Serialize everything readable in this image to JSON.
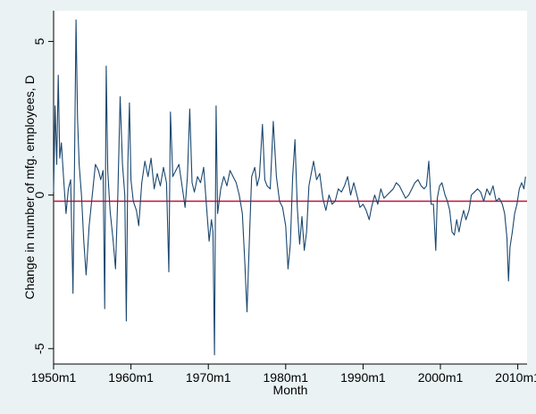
{
  "chart_data": {
    "type": "line",
    "xlabel": "Month",
    "ylabel": "Change in number of mfg. employees, D",
    "x_ticks": [
      "1950m1",
      "1960m1",
      "1970m1",
      "1980m1",
      "1990m1",
      "2000m1",
      "2010m1"
    ],
    "y_ticks": [
      "5",
      "0",
      "-5"
    ],
    "xlim": [
      1950.0,
      2011.2
    ],
    "ylim": [
      -5.5,
      6.0
    ],
    "grid": false,
    "reference_line": {
      "y": -0.2,
      "color": "#c0143c"
    },
    "series": [
      {
        "color": "#1a476f",
        "points": [
          [
            1950.0,
            0.1
          ],
          [
            1950.2,
            2.9
          ],
          [
            1950.4,
            1.0
          ],
          [
            1950.6,
            3.9
          ],
          [
            1950.8,
            1.2
          ],
          [
            1951.0,
            1.7
          ],
          [
            1951.3,
            0.5
          ],
          [
            1951.6,
            -0.6
          ],
          [
            1951.9,
            0.2
          ],
          [
            1952.2,
            0.5
          ],
          [
            1952.5,
            -3.2
          ],
          [
            1952.7,
            1.0
          ],
          [
            1952.9,
            5.7
          ],
          [
            1953.1,
            2.5
          ],
          [
            1953.3,
            1.0
          ],
          [
            1953.6,
            0.0
          ],
          [
            1953.9,
            -1.5
          ],
          [
            1954.2,
            -2.6
          ],
          [
            1954.6,
            -1.0
          ],
          [
            1955.0,
            0.0
          ],
          [
            1955.4,
            1.0
          ],
          [
            1955.8,
            0.8
          ],
          [
            1956.1,
            0.5
          ],
          [
            1956.4,
            0.8
          ],
          [
            1956.6,
            -3.7
          ],
          [
            1956.8,
            4.2
          ],
          [
            1957.0,
            0.8
          ],
          [
            1957.3,
            -0.5
          ],
          [
            1957.7,
            -1.5
          ],
          [
            1958.0,
            -2.4
          ],
          [
            1958.3,
            0.0
          ],
          [
            1958.6,
            3.2
          ],
          [
            1958.9,
            1.0
          ],
          [
            1959.2,
            0.0
          ],
          [
            1959.4,
            -4.1
          ],
          [
            1959.6,
            1.0
          ],
          [
            1959.8,
            3.0
          ],
          [
            1960.0,
            0.5
          ],
          [
            1960.3,
            -0.2
          ],
          [
            1960.7,
            -0.5
          ],
          [
            1961.0,
            -1.0
          ],
          [
            1961.4,
            0.4
          ],
          [
            1961.8,
            1.1
          ],
          [
            1962.2,
            0.6
          ],
          [
            1962.6,
            1.2
          ],
          [
            1963.0,
            0.2
          ],
          [
            1963.4,
            0.7
          ],
          [
            1963.8,
            0.3
          ],
          [
            1964.2,
            0.9
          ],
          [
            1964.6,
            0.4
          ],
          [
            1964.9,
            -2.5
          ],
          [
            1965.1,
            2.7
          ],
          [
            1965.4,
            0.6
          ],
          [
            1965.8,
            0.8
          ],
          [
            1966.2,
            1.0
          ],
          [
            1966.6,
            0.3
          ],
          [
            1967.0,
            -0.4
          ],
          [
            1967.3,
            0.6
          ],
          [
            1967.6,
            2.8
          ],
          [
            1967.9,
            0.4
          ],
          [
            1968.2,
            0.1
          ],
          [
            1968.6,
            0.6
          ],
          [
            1969.0,
            0.4
          ],
          [
            1969.4,
            0.9
          ],
          [
            1969.8,
            -0.5
          ],
          [
            1970.1,
            -1.5
          ],
          [
            1970.4,
            -0.8
          ],
          [
            1970.6,
            -1.2
          ],
          [
            1970.8,
            -5.2
          ],
          [
            1971.0,
            2.9
          ],
          [
            1971.2,
            -0.6
          ],
          [
            1971.6,
            0.2
          ],
          [
            1972.0,
            0.6
          ],
          [
            1972.4,
            0.3
          ],
          [
            1972.8,
            0.8
          ],
          [
            1973.2,
            0.6
          ],
          [
            1973.6,
            0.4
          ],
          [
            1974.0,
            0.0
          ],
          [
            1974.4,
            -0.6
          ],
          [
            1974.7,
            -2.1
          ],
          [
            1975.0,
            -3.8
          ],
          [
            1975.3,
            -1.5
          ],
          [
            1975.6,
            0.6
          ],
          [
            1976.0,
            0.9
          ],
          [
            1976.3,
            0.3
          ],
          [
            1976.6,
            0.6
          ],
          [
            1977.0,
            2.3
          ],
          [
            1977.3,
            0.5
          ],
          [
            1977.6,
            0.3
          ],
          [
            1978.0,
            0.2
          ],
          [
            1978.4,
            2.4
          ],
          [
            1978.8,
            0.6
          ],
          [
            1979.2,
            -0.2
          ],
          [
            1979.6,
            -0.4
          ],
          [
            1980.0,
            -1.0
          ],
          [
            1980.3,
            -2.4
          ],
          [
            1980.6,
            -1.6
          ],
          [
            1980.9,
            0.6
          ],
          [
            1981.2,
            1.8
          ],
          [
            1981.5,
            -0.4
          ],
          [
            1981.8,
            -1.6
          ],
          [
            1982.1,
            -0.7
          ],
          [
            1982.4,
            -1.8
          ],
          [
            1982.7,
            -1.2
          ],
          [
            1983.0,
            0.3
          ],
          [
            1983.3,
            0.7
          ],
          [
            1983.6,
            1.1
          ],
          [
            1984.0,
            0.5
          ],
          [
            1984.4,
            0.7
          ],
          [
            1984.8,
            -0.1
          ],
          [
            1985.2,
            -0.5
          ],
          [
            1985.6,
            0.0
          ],
          [
            1986.0,
            -0.3
          ],
          [
            1986.4,
            -0.2
          ],
          [
            1986.8,
            0.2
          ],
          [
            1987.2,
            0.1
          ],
          [
            1987.6,
            0.3
          ],
          [
            1988.0,
            0.6
          ],
          [
            1988.4,
            0.0
          ],
          [
            1988.8,
            0.4
          ],
          [
            1989.2,
            0.0
          ],
          [
            1989.6,
            -0.4
          ],
          [
            1990.0,
            -0.3
          ],
          [
            1990.4,
            -0.5
          ],
          [
            1990.8,
            -0.8
          ],
          [
            1991.1,
            -0.4
          ],
          [
            1991.5,
            0.0
          ],
          [
            1991.9,
            -0.3
          ],
          [
            1992.3,
            0.2
          ],
          [
            1992.7,
            -0.1
          ],
          [
            1993.1,
            0.0
          ],
          [
            1993.5,
            0.1
          ],
          [
            1993.9,
            0.2
          ],
          [
            1994.3,
            0.4
          ],
          [
            1994.7,
            0.3
          ],
          [
            1995.1,
            0.1
          ],
          [
            1995.5,
            -0.1
          ],
          [
            1995.9,
            0.0
          ],
          [
            1996.3,
            0.2
          ],
          [
            1996.7,
            0.4
          ],
          [
            1997.1,
            0.5
          ],
          [
            1997.5,
            0.3
          ],
          [
            1997.9,
            0.2
          ],
          [
            1998.2,
            0.3
          ],
          [
            1998.5,
            1.1
          ],
          [
            1998.8,
            -0.3
          ],
          [
            1999.1,
            -0.3
          ],
          [
            1999.4,
            -1.8
          ],
          [
            1999.6,
            -0.1
          ],
          [
            1999.9,
            0.3
          ],
          [
            2000.2,
            0.4
          ],
          [
            2000.6,
            0.0
          ],
          [
            2000.9,
            -0.2
          ],
          [
            2001.2,
            -0.5
          ],
          [
            2001.5,
            -1.2
          ],
          [
            2001.8,
            -1.3
          ],
          [
            2002.1,
            -0.8
          ],
          [
            2002.4,
            -1.2
          ],
          [
            2002.7,
            -0.8
          ],
          [
            2003.0,
            -0.5
          ],
          [
            2003.3,
            -0.8
          ],
          [
            2003.7,
            -0.5
          ],
          [
            2004.0,
            0.0
          ],
          [
            2004.4,
            0.1
          ],
          [
            2004.8,
            0.2
          ],
          [
            2005.2,
            0.1
          ],
          [
            2005.6,
            -0.2
          ],
          [
            2006.0,
            0.2
          ],
          [
            2006.4,
            0.0
          ],
          [
            2006.8,
            0.3
          ],
          [
            2007.2,
            -0.2
          ],
          [
            2007.6,
            -0.1
          ],
          [
            2008.0,
            -0.3
          ],
          [
            2008.3,
            -0.6
          ],
          [
            2008.6,
            -1.4
          ],
          [
            2008.8,
            -2.8
          ],
          [
            2009.0,
            -1.7
          ],
          [
            2009.3,
            -1.2
          ],
          [
            2009.6,
            -0.6
          ],
          [
            2009.9,
            -0.3
          ],
          [
            2010.2,
            0.2
          ],
          [
            2010.5,
            0.4
          ],
          [
            2010.8,
            0.2
          ],
          [
            2011.0,
            0.6
          ]
        ]
      }
    ]
  }
}
